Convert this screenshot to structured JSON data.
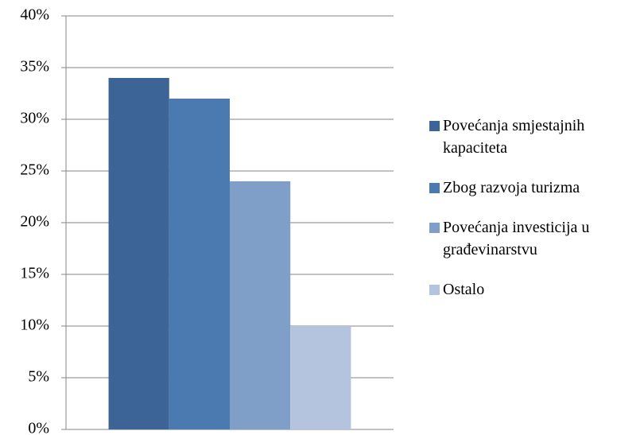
{
  "chart_data": {
    "type": "bar",
    "categories": [
      null
    ],
    "series": [
      {
        "name": "Povećanja smjestajnih kapaciteta",
        "color": "#3d6496",
        "values": [
          34
        ]
      },
      {
        "name": "Zbog razvoja turizma",
        "color": "#4a7ab0",
        "values": [
          32
        ]
      },
      {
        "name": "Povećanja investicija u građevinarstvu",
        "color": "#7f9fc9",
        "values": [
          24
        ]
      },
      {
        "name": "Ostalo",
        "color": "#b4c3de",
        "values": [
          10
        ]
      }
    ],
    "ylim": [
      0,
      40
    ],
    "yticks": [
      {
        "value": 0,
        "label": "0%"
      },
      {
        "value": 5,
        "label": "5%"
      },
      {
        "value": 10,
        "label": "10%"
      },
      {
        "value": 15,
        "label": "15%"
      },
      {
        "value": 20,
        "label": "20%"
      },
      {
        "value": 25,
        "label": "25%"
      },
      {
        "value": 30,
        "label": "30%"
      },
      {
        "value": 35,
        "label": "35%"
      },
      {
        "value": 40,
        "label": "40%"
      }
    ],
    "grid": true,
    "legend": "right"
  }
}
